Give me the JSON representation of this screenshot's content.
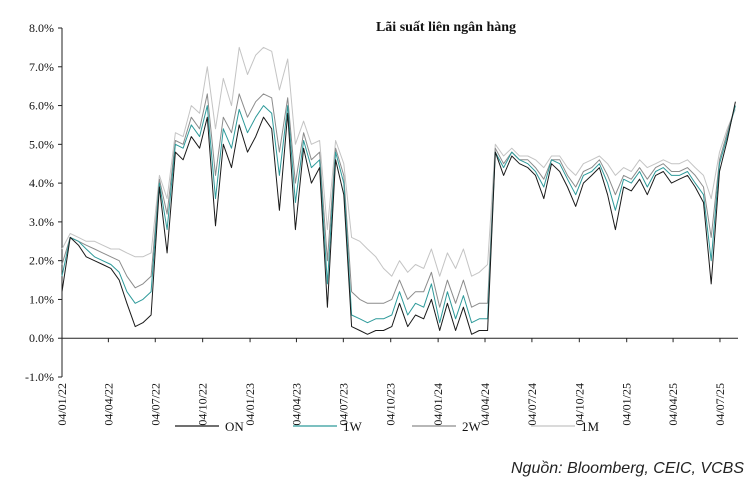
{
  "chart_data": {
    "type": "line",
    "title": "Lãi suất liên ngân hàng",
    "xlabel": "",
    "ylabel": "",
    "y_tick_labels": [
      "-1.0%",
      "0.0%",
      "1.0%",
      "2.0%",
      "3.0%",
      "4.0%",
      "5.0%",
      "6.0%",
      "7.0%",
      "8.0%"
    ],
    "y_ticks": [
      -1,
      0,
      1,
      2,
      3,
      4,
      5,
      6,
      7,
      8
    ],
    "ylim": [
      -1,
      8
    ],
    "x_tick_labels": [
      "04/01/22",
      "04/04/22",
      "04/07/22",
      "04/10/22",
      "04/01/23",
      "04/04/23",
      "04/07/23",
      "04/10/23",
      "04/01/24",
      "04/04/24",
      "04/07/24",
      "04/10/24",
      "04/01/25",
      "04/04/25",
      "04/07/25"
    ],
    "x_ticks": [
      "2022-01-04",
      "2022-04-04",
      "2022-07-04",
      "2022-10-04",
      "2023-01-04",
      "2023-04-04",
      "2023-07-04",
      "2023-10-04",
      "2024-01-04",
      "2024-04-04",
      "2024-07-04",
      "2024-10-04",
      "2025-01-04",
      "2025-04-04",
      "2025-07-04"
    ],
    "xlim": [
      "2022-01-04",
      "2025-08-08"
    ],
    "grid": false,
    "legend_position": "bottom",
    "x": [
      "2022-01-04",
      "2022-01-20",
      "2022-02-05",
      "2022-02-20",
      "2022-03-08",
      "2022-03-24",
      "2022-04-09",
      "2022-04-25",
      "2022-05-10",
      "2022-05-26",
      "2022-06-10",
      "2022-06-26",
      "2022-07-12",
      "2022-07-27",
      "2022-08-12",
      "2022-08-27",
      "2022-09-12",
      "2022-09-28",
      "2022-10-13",
      "2022-10-29",
      "2022-11-13",
      "2022-11-29",
      "2022-12-14",
      "2022-12-30",
      "2023-01-15",
      "2023-01-30",
      "2023-02-15",
      "2023-03-02",
      "2023-03-18",
      "2023-04-02",
      "2023-04-18",
      "2023-05-03",
      "2023-05-19",
      "2023-06-03",
      "2023-06-19",
      "2023-07-05",
      "2023-07-20",
      "2023-08-05",
      "2023-08-20",
      "2023-09-05",
      "2023-09-20",
      "2023-10-06",
      "2023-10-21",
      "2023-11-06",
      "2023-11-21",
      "2023-12-07",
      "2023-12-22",
      "2024-01-07",
      "2024-01-22",
      "2024-02-07",
      "2024-02-22",
      "2024-03-09",
      "2024-03-24",
      "2024-04-09",
      "2024-04-24",
      "2024-05-10",
      "2024-05-26",
      "2024-06-10",
      "2024-06-26",
      "2024-07-11",
      "2024-07-27",
      "2024-08-11",
      "2024-08-27",
      "2024-09-11",
      "2024-09-27",
      "2024-10-12",
      "2024-10-28",
      "2024-11-12",
      "2024-11-28",
      "2024-12-13",
      "2024-12-29",
      "2025-01-13",
      "2025-01-29",
      "2025-02-13",
      "2025-03-01",
      "2025-03-16",
      "2025-04-01",
      "2025-04-16",
      "2025-05-02",
      "2025-05-17",
      "2025-06-02",
      "2025-06-17",
      "2025-07-03",
      "2025-07-18",
      "2025-08-03"
    ],
    "series": [
      {
        "name": "ON",
        "color": "#1a1a1a",
        "values": [
          1.2,
          2.6,
          2.4,
          2.1,
          2.0,
          1.9,
          1.8,
          1.5,
          0.9,
          0.3,
          0.4,
          0.6,
          3.9,
          2.2,
          4.8,
          4.6,
          5.2,
          4.9,
          5.7,
          2.9,
          5.0,
          4.4,
          5.5,
          4.8,
          5.2,
          5.7,
          5.4,
          3.3,
          5.8,
          2.8,
          4.9,
          4.0,
          4.4,
          0.8,
          4.6,
          3.7,
          0.3,
          0.2,
          0.1,
          0.2,
          0.2,
          0.3,
          0.9,
          0.3,
          0.6,
          0.5,
          1.0,
          0.2,
          0.9,
          0.2,
          0.8,
          0.1,
          0.2,
          0.2,
          4.8,
          4.2,
          4.7,
          4.5,
          4.4,
          4.2,
          3.6,
          4.5,
          4.3,
          3.9,
          3.4,
          4.0,
          4.2,
          4.4,
          3.7,
          2.8,
          3.9,
          3.8,
          4.1,
          3.7,
          4.2,
          4.3,
          4.0,
          4.1,
          4.2,
          3.9,
          3.5,
          1.4,
          4.3,
          5.1,
          6.1
        ]
      },
      {
        "name": "1W",
        "color": "#2e9a9a",
        "values": [
          1.6,
          2.6,
          2.5,
          2.3,
          2.1,
          2.0,
          1.9,
          1.7,
          1.2,
          0.9,
          1.0,
          1.2,
          4.0,
          2.8,
          5.0,
          4.9,
          5.5,
          5.2,
          6.0,
          3.6,
          5.4,
          4.9,
          5.9,
          5.3,
          5.7,
          6.0,
          5.8,
          4.2,
          6.0,
          3.5,
          5.1,
          4.4,
          4.6,
          1.4,
          4.8,
          4.0,
          0.6,
          0.5,
          0.4,
          0.5,
          0.5,
          0.6,
          1.2,
          0.6,
          0.9,
          0.8,
          1.4,
          0.4,
          1.2,
          0.5,
          1.1,
          0.4,
          0.5,
          0.5,
          4.8,
          4.4,
          4.8,
          4.6,
          4.5,
          4.3,
          3.9,
          4.6,
          4.5,
          4.1,
          3.7,
          4.2,
          4.3,
          4.5,
          4.0,
          3.3,
          4.1,
          4.0,
          4.3,
          3.9,
          4.3,
          4.4,
          4.2,
          4.2,
          4.3,
          4.0,
          3.7,
          2.0,
          4.5,
          5.2,
          6.0
        ]
      },
      {
        "name": "2W",
        "color": "#8c8c8c",
        "values": [
          1.9,
          2.6,
          2.5,
          2.4,
          2.3,
          2.2,
          2.1,
          2.0,
          1.6,
          1.3,
          1.4,
          1.6,
          4.1,
          3.2,
          5.1,
          5.0,
          5.7,
          5.4,
          6.3,
          4.2,
          5.7,
          5.3,
          6.3,
          5.7,
          6.1,
          6.3,
          6.2,
          4.8,
          6.2,
          4.0,
          5.3,
          4.6,
          4.8,
          2.0,
          4.9,
          4.2,
          1.2,
          1.0,
          0.9,
          0.9,
          0.9,
          1.0,
          1.5,
          1.0,
          1.2,
          1.2,
          1.7,
          0.8,
          1.5,
          0.9,
          1.5,
          0.8,
          0.9,
          0.9,
          4.9,
          4.5,
          4.8,
          4.6,
          4.6,
          4.4,
          4.1,
          4.6,
          4.6,
          4.2,
          3.9,
          4.3,
          4.4,
          4.6,
          4.2,
          3.7,
          4.2,
          4.1,
          4.4,
          4.1,
          4.4,
          4.5,
          4.3,
          4.3,
          4.4,
          4.2,
          3.9,
          2.6,
          4.6,
          5.3,
          6.0
        ]
      },
      {
        "name": "1M",
        "color": "#c4c4c4",
        "values": [
          2.3,
          2.7,
          2.6,
          2.5,
          2.5,
          2.4,
          2.3,
          2.3,
          2.2,
          2.1,
          2.1,
          2.2,
          4.2,
          3.6,
          5.3,
          5.2,
          6.0,
          5.8,
          7.0,
          5.4,
          6.7,
          6.0,
          7.5,
          6.8,
          7.3,
          7.5,
          7.4,
          6.4,
          7.2,
          5.0,
          5.6,
          5.0,
          5.1,
          2.8,
          5.1,
          4.5,
          2.6,
          2.5,
          2.3,
          2.1,
          1.8,
          1.6,
          2.0,
          1.7,
          1.9,
          1.8,
          2.3,
          1.6,
          2.2,
          1.8,
          2.3,
          1.6,
          1.7,
          1.9,
          5.0,
          4.7,
          4.9,
          4.7,
          4.7,
          4.6,
          4.4,
          4.7,
          4.7,
          4.4,
          4.2,
          4.5,
          4.6,
          4.7,
          4.5,
          4.2,
          4.4,
          4.3,
          4.6,
          4.4,
          4.5,
          4.6,
          4.5,
          4.5,
          4.6,
          4.4,
          4.2,
          3.6,
          4.8,
          5.4,
          5.9
        ]
      }
    ],
    "source": "Nguồn: Bloomberg, CEIC, VCBS"
  }
}
